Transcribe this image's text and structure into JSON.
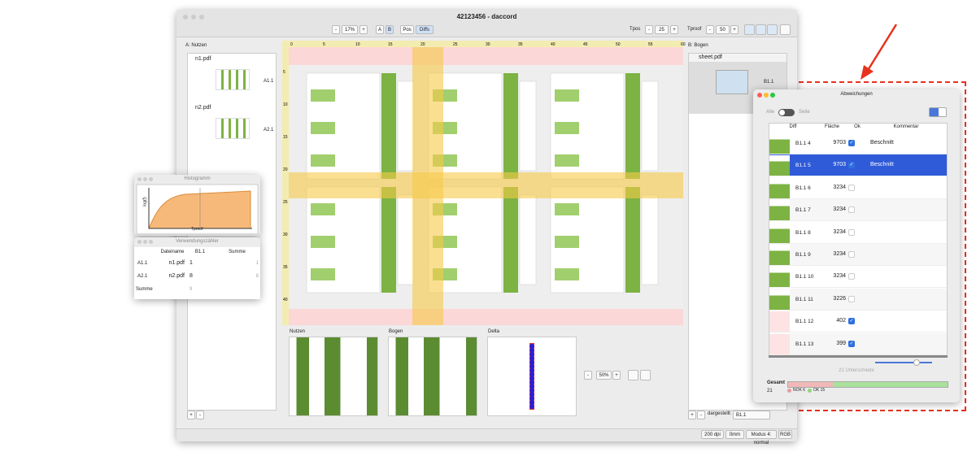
{
  "window": {
    "title": "42123456 - daccord"
  },
  "toolbar": {
    "left": [
      "-",
      "17%",
      "+",
      "A",
      "B",
      "Pos",
      "Diffs"
    ],
    "right": [
      "Tpos",
      "-",
      "25",
      "+",
      "Tproof",
      "-",
      "50",
      "+"
    ]
  },
  "left_panel": {
    "title": "A: Nutzen",
    "files": [
      {
        "name": "n1.pdf",
        "item": "A1.1"
      },
      {
        "name": "n2.pdf",
        "item": "A2.1"
      }
    ],
    "buttons": [
      "+",
      "-"
    ]
  },
  "ruler": {
    "top": [
      "0",
      "5",
      "10",
      "15",
      "20",
      "25",
      "30",
      "35",
      "40",
      "45",
      "50",
      "55",
      "60"
    ],
    "left": [
      "5",
      "10",
      "15",
      "20",
      "25",
      "30",
      "35",
      "40"
    ]
  },
  "previews": {
    "panels": [
      "Nutzen",
      "Bogen",
      "Delta"
    ],
    "zoom": [
      "-",
      "50%",
      "+"
    ]
  },
  "right_panel": {
    "title": "B: Bogen",
    "file": "sheet.pdf",
    "item": "B1.1",
    "buttons": [
      "+",
      "-"
    ],
    "shown_label": "dargestellt:",
    "shown_value": "B1.1"
  },
  "status": [
    "200 dpi",
    "0mm",
    "Modus 4: normal",
    "RGB"
  ],
  "histogram": {
    "title": "Histogramm",
    "ylabel": "log(f)",
    "xlabel": "Tproof"
  },
  "usage": {
    "title": "Verwendungszähler",
    "headers": [
      "Dateiname",
      "B1.1",
      "Summe"
    ],
    "rows": [
      [
        "A1.1",
        "n1.pdf",
        "1",
        "1"
      ],
      [
        "A2.1",
        "n2.pdf",
        "8",
        "8"
      ]
    ],
    "total": [
      "Summe",
      "9"
    ]
  },
  "deviations": {
    "title": "Abweichungen",
    "toggle": [
      "Alle",
      "Seite"
    ],
    "headers": [
      "Diff",
      "Fläche",
      "Ok",
      "Kommentar"
    ],
    "rows": [
      {
        "id": "B1.1 4",
        "area": "9703",
        "ok": true,
        "comment": "Beschnitt"
      },
      {
        "id": "B1.1 5",
        "area": "9703",
        "ok": true,
        "comment": "Beschnitt",
        "selected": true
      },
      {
        "id": "B1.1 6",
        "area": "3234",
        "ok": false
      },
      {
        "id": "B1.1 7",
        "area": "3234",
        "ok": false
      },
      {
        "id": "B1.1 8",
        "area": "3234",
        "ok": false
      },
      {
        "id": "B1.1 9",
        "area": "3234",
        "ok": false
      },
      {
        "id": "B1.1 10",
        "area": "3234",
        "ok": false
      },
      {
        "id": "B1.1 11",
        "area": "3226",
        "ok": false
      },
      {
        "id": "B1.1 12",
        "area": "402",
        "ok": true
      },
      {
        "id": "B1.1 13",
        "area": "399",
        "ok": true
      }
    ],
    "count_label": "21 Unterschiede",
    "total_label": "Gesamt",
    "total": "21",
    "nok": "NOK 6",
    "ok": "OK 15"
  }
}
